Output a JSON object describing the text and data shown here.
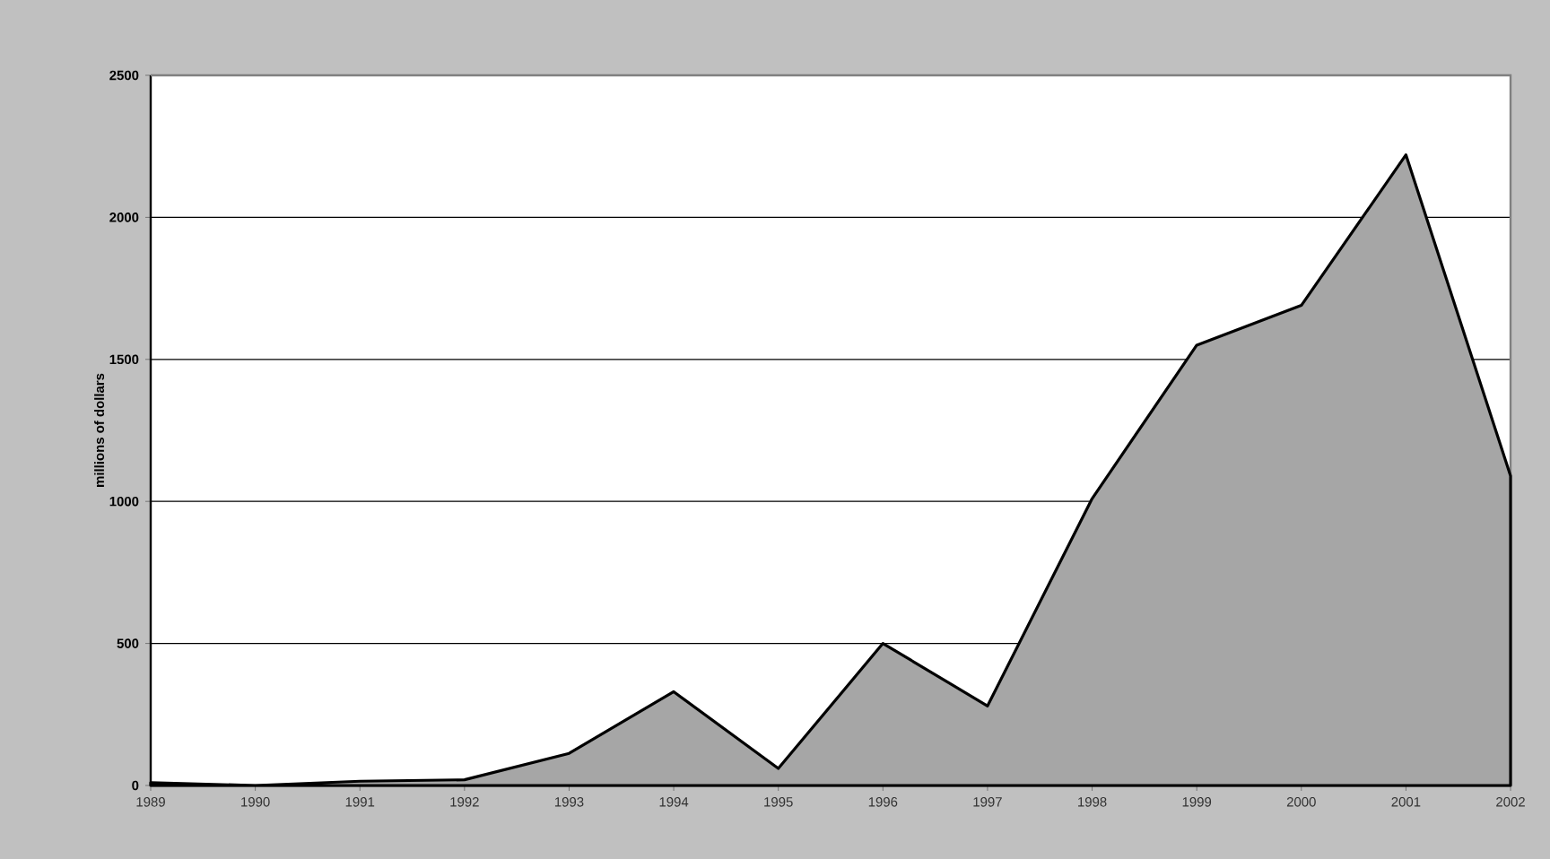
{
  "chart_data": {
    "type": "area",
    "ylabel": "millions of dollars",
    "categories": [
      "1989",
      "1990",
      "1991",
      "1992",
      "1993",
      "1994",
      "1995",
      "1996",
      "1997",
      "1998",
      "1999",
      "2000",
      "2001",
      "2002"
    ],
    "values": [
      10,
      0,
      15,
      20,
      113,
      330,
      60,
      500,
      280,
      1010,
      1550,
      1690,
      2220,
      1090
    ],
    "color": "#a6a6a6",
    "ylim": [
      0,
      2500
    ],
    "yticks": [
      0,
      500,
      1000,
      1500,
      2000,
      2500
    ],
    "grid": "y"
  }
}
